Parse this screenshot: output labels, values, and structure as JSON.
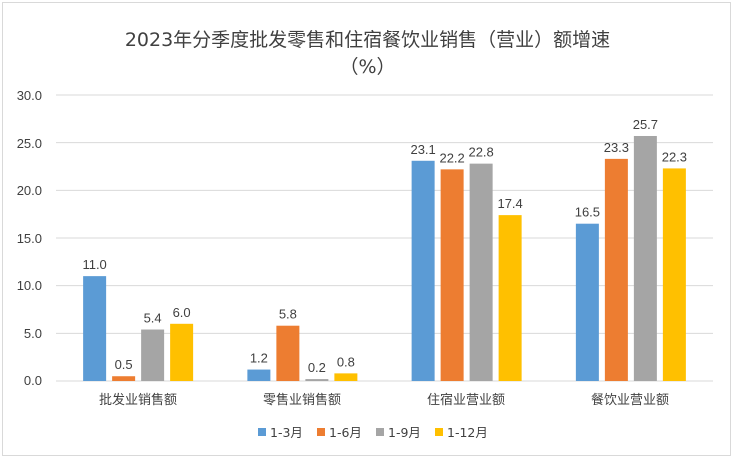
{
  "chart_data": {
    "type": "bar",
    "title": "2023年分季度批发零售和住宿餐饮业销售（营业）额增速",
    "subtitle": "（%）",
    "categories": [
      "批发业销售额",
      "零售业销售额",
      "住宿业营业额",
      "餐饮业营业额"
    ],
    "series": [
      {
        "name": "1-3月",
        "color": "#5b9bd5",
        "values": [
          11.0,
          1.2,
          23.1,
          16.5
        ]
      },
      {
        "name": "1-6月",
        "color": "#ed7d31",
        "values": [
          0.5,
          5.8,
          22.2,
          23.3
        ]
      },
      {
        "name": "1-9月",
        "color": "#a5a5a5",
        "values": [
          5.4,
          0.2,
          22.8,
          25.7
        ]
      },
      {
        "name": "1-12月",
        "color": "#ffc000",
        "values": [
          6.0,
          0.8,
          17.4,
          22.3
        ]
      }
    ],
    "yticks": [
      "0.0",
      "5.0",
      "10.0",
      "15.0",
      "20.0",
      "25.0",
      "30.0"
    ],
    "ylim": [
      0,
      30
    ],
    "xlabel": "",
    "ylabel": "",
    "grid": true,
    "legend": "bottom"
  }
}
